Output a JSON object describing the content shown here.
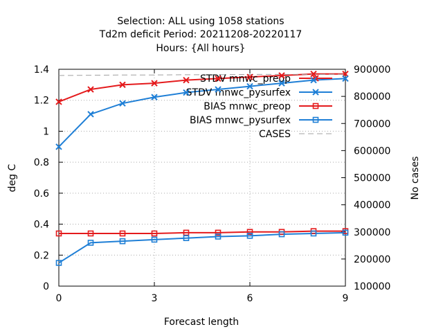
{
  "chart_data": {
    "type": "line",
    "title_lines": [
      "Selection: ALL using  1058 stations",
      "Td2m deficit   Period: 20211208-20220117",
      "Hours: {All hours}"
    ],
    "xlabel": "Forecast length",
    "ylabel": "deg C",
    "y2label": "No cases",
    "x_ticks": [
      0,
      3,
      6,
      9
    ],
    "y_ticks": [
      "0",
      "0.2",
      "0.4",
      "0.6",
      "0.8",
      "1",
      "1.2",
      "1.4"
    ],
    "y2_ticks": [
      "100000",
      "200000",
      "300000",
      "400000",
      "500000",
      "600000",
      "700000",
      "800000",
      "900000"
    ],
    "xlim": [
      0,
      9
    ],
    "ylim": [
      0,
      1.4
    ],
    "y2lim": [
      100000,
      900000
    ],
    "grid": true,
    "legend_position": "top-right",
    "x": [
      0,
      1,
      2,
      3,
      4,
      5,
      6,
      7,
      8,
      9
    ],
    "series": [
      {
        "name": "STDV mnwc_preop",
        "axis": "y1",
        "color": "#e41a1c",
        "marker": "x",
        "values": [
          1.19,
          1.27,
          1.3,
          1.31,
          1.33,
          1.34,
          1.35,
          1.36,
          1.37,
          1.37
        ]
      },
      {
        "name": "STDV mnwc_pysurfex",
        "axis": "y1",
        "color": "#1f7fd6",
        "marker": "x",
        "values": [
          0.9,
          1.11,
          1.18,
          1.22,
          1.25,
          1.27,
          1.29,
          1.31,
          1.33,
          1.34
        ]
      },
      {
        "name": "BIAS mnwc_preop",
        "axis": "y1",
        "color": "#e41a1c",
        "marker": "square",
        "values": [
          0.34,
          0.34,
          0.34,
          0.34,
          0.345,
          0.345,
          0.35,
          0.35,
          0.355,
          0.355
        ]
      },
      {
        "name": "BIAS mnwc_pysurfex",
        "axis": "y1",
        "color": "#1f7fd6",
        "marker": "square",
        "values": [
          0.15,
          0.28,
          0.29,
          0.3,
          0.31,
          0.32,
          0.325,
          0.335,
          0.34,
          0.345
        ]
      },
      {
        "name": "CASES",
        "axis": "y2",
        "color": "#a0a0a0",
        "marker": "none",
        "dashed": true,
        "values": [
          877000,
          878000,
          879000,
          879000,
          880000,
          880000,
          881000,
          881000,
          881000,
          882000
        ]
      }
    ]
  }
}
